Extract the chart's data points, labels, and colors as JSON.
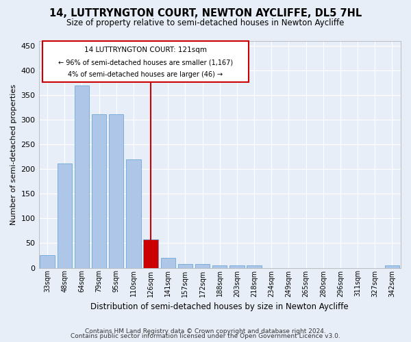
{
  "title": "14, LUTTRYNGTON COURT, NEWTON AYCLIFFE, DL5 7HL",
  "subtitle": "Size of property relative to semi-detached houses in Newton Aycliffe",
  "xlabel": "Distribution of semi-detached houses by size in Newton Aycliffe",
  "ylabel": "Number of semi-detached properties",
  "footer1": "Contains HM Land Registry data © Crown copyright and database right 2024.",
  "footer2": "Contains public sector information licensed under the Open Government Licence v3.0.",
  "annotation_title": "14 LUTTRYNGTON COURT: 121sqm",
  "annotation_line1": "← 96% of semi-detached houses are smaller (1,167)",
  "annotation_line2": "4% of semi-detached houses are larger (46) →",
  "bar_color": "#aec6e8",
  "bar_edge_color": "#5a9fd4",
  "highlight_color": "#cc0000",
  "highlight_bar_color": "#cc0000",
  "bg_color": "#e8eef8",
  "grid_color": "#ffffff",
  "categories": [
    "33sqm",
    "48sqm",
    "64sqm",
    "79sqm",
    "95sqm",
    "110sqm",
    "126sqm",
    "141sqm",
    "157sqm",
    "172sqm",
    "188sqm",
    "203sqm",
    "218sqm",
    "234sqm",
    "249sqm",
    "265sqm",
    "280sqm",
    "296sqm",
    "311sqm",
    "327sqm",
    "342sqm"
  ],
  "values": [
    25,
    212,
    370,
    311,
    311,
    220,
    57,
    20,
    8,
    7,
    5,
    5,
    5,
    0,
    0,
    0,
    0,
    0,
    0,
    0,
    5
  ],
  "highlight_index": 6,
  "vline_category_index": 6,
  "ylim": [
    0,
    460
  ],
  "yticks": [
    0,
    50,
    100,
    150,
    200,
    250,
    300,
    350,
    400,
    450
  ],
  "figsize": [
    6.0,
    5.0
  ],
  "dpi": 100,
  "title_fontsize": 10.5,
  "subtitle_fontsize": 8.5,
  "ylabel_fontsize": 8,
  "xlabel_fontsize": 8.5,
  "tick_fontsize": 7,
  "footer_fontsize": 6.5
}
